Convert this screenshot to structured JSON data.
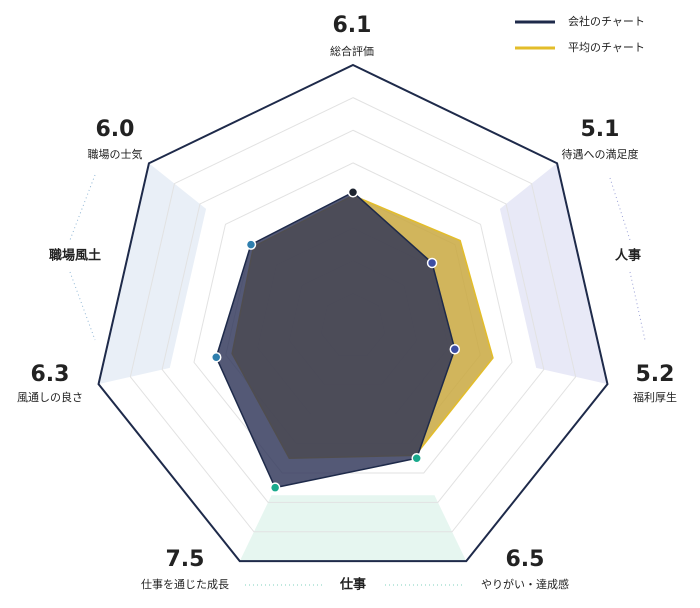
{
  "chart_data": {
    "type": "radar",
    "axes": [
      "総合評価",
      "待遇への満足度",
      "福利厚生",
      "やりがい・達成感",
      "仕事を通じた成長",
      "風通しの良さ",
      "職場の士気"
    ],
    "rlim": [
      2,
      10
    ],
    "rticks": [
      3,
      4,
      5,
      6,
      7,
      8,
      9,
      10
    ],
    "series": [
      {
        "name": "平均のチャート",
        "color": "#e3bd2a",
        "fill": "#c9a840",
        "values": [
          6.0,
          6.2,
          6.4,
          6.4,
          6.5,
          5.8,
          5.9
        ]
      },
      {
        "name": "会社のチャート",
        "color": "#1e2a4a",
        "fill": "#2e3558",
        "values": [
          6.1,
          5.1,
          5.2,
          6.5,
          7.5,
          6.3,
          6.0
        ],
        "value_labels": [
          "6.1",
          "5.1",
          "5.2",
          "6.5",
          "7.5",
          "6.3",
          "6.0"
        ],
        "point_colors": [
          "#1e2430",
          "#3d4ea3",
          "#3d4ea3",
          "#19a98c",
          "#19a98c",
          "#2f7fae",
          "#2f7fae"
        ]
      }
    ],
    "groups": [
      {
        "name": "職場風土",
        "color": "#3d8ab9",
        "shade": "#e9eff7",
        "axes": [
          5,
          6
        ]
      },
      {
        "name": "人事",
        "color": "#4a56b0",
        "shade": "#e8e9f7",
        "axes": [
          1,
          2
        ]
      },
      {
        "name": "仕事",
        "color": "#19a98c",
        "shade": "#e6f6f0",
        "axes": [
          3,
          4
        ]
      }
    ]
  }
}
